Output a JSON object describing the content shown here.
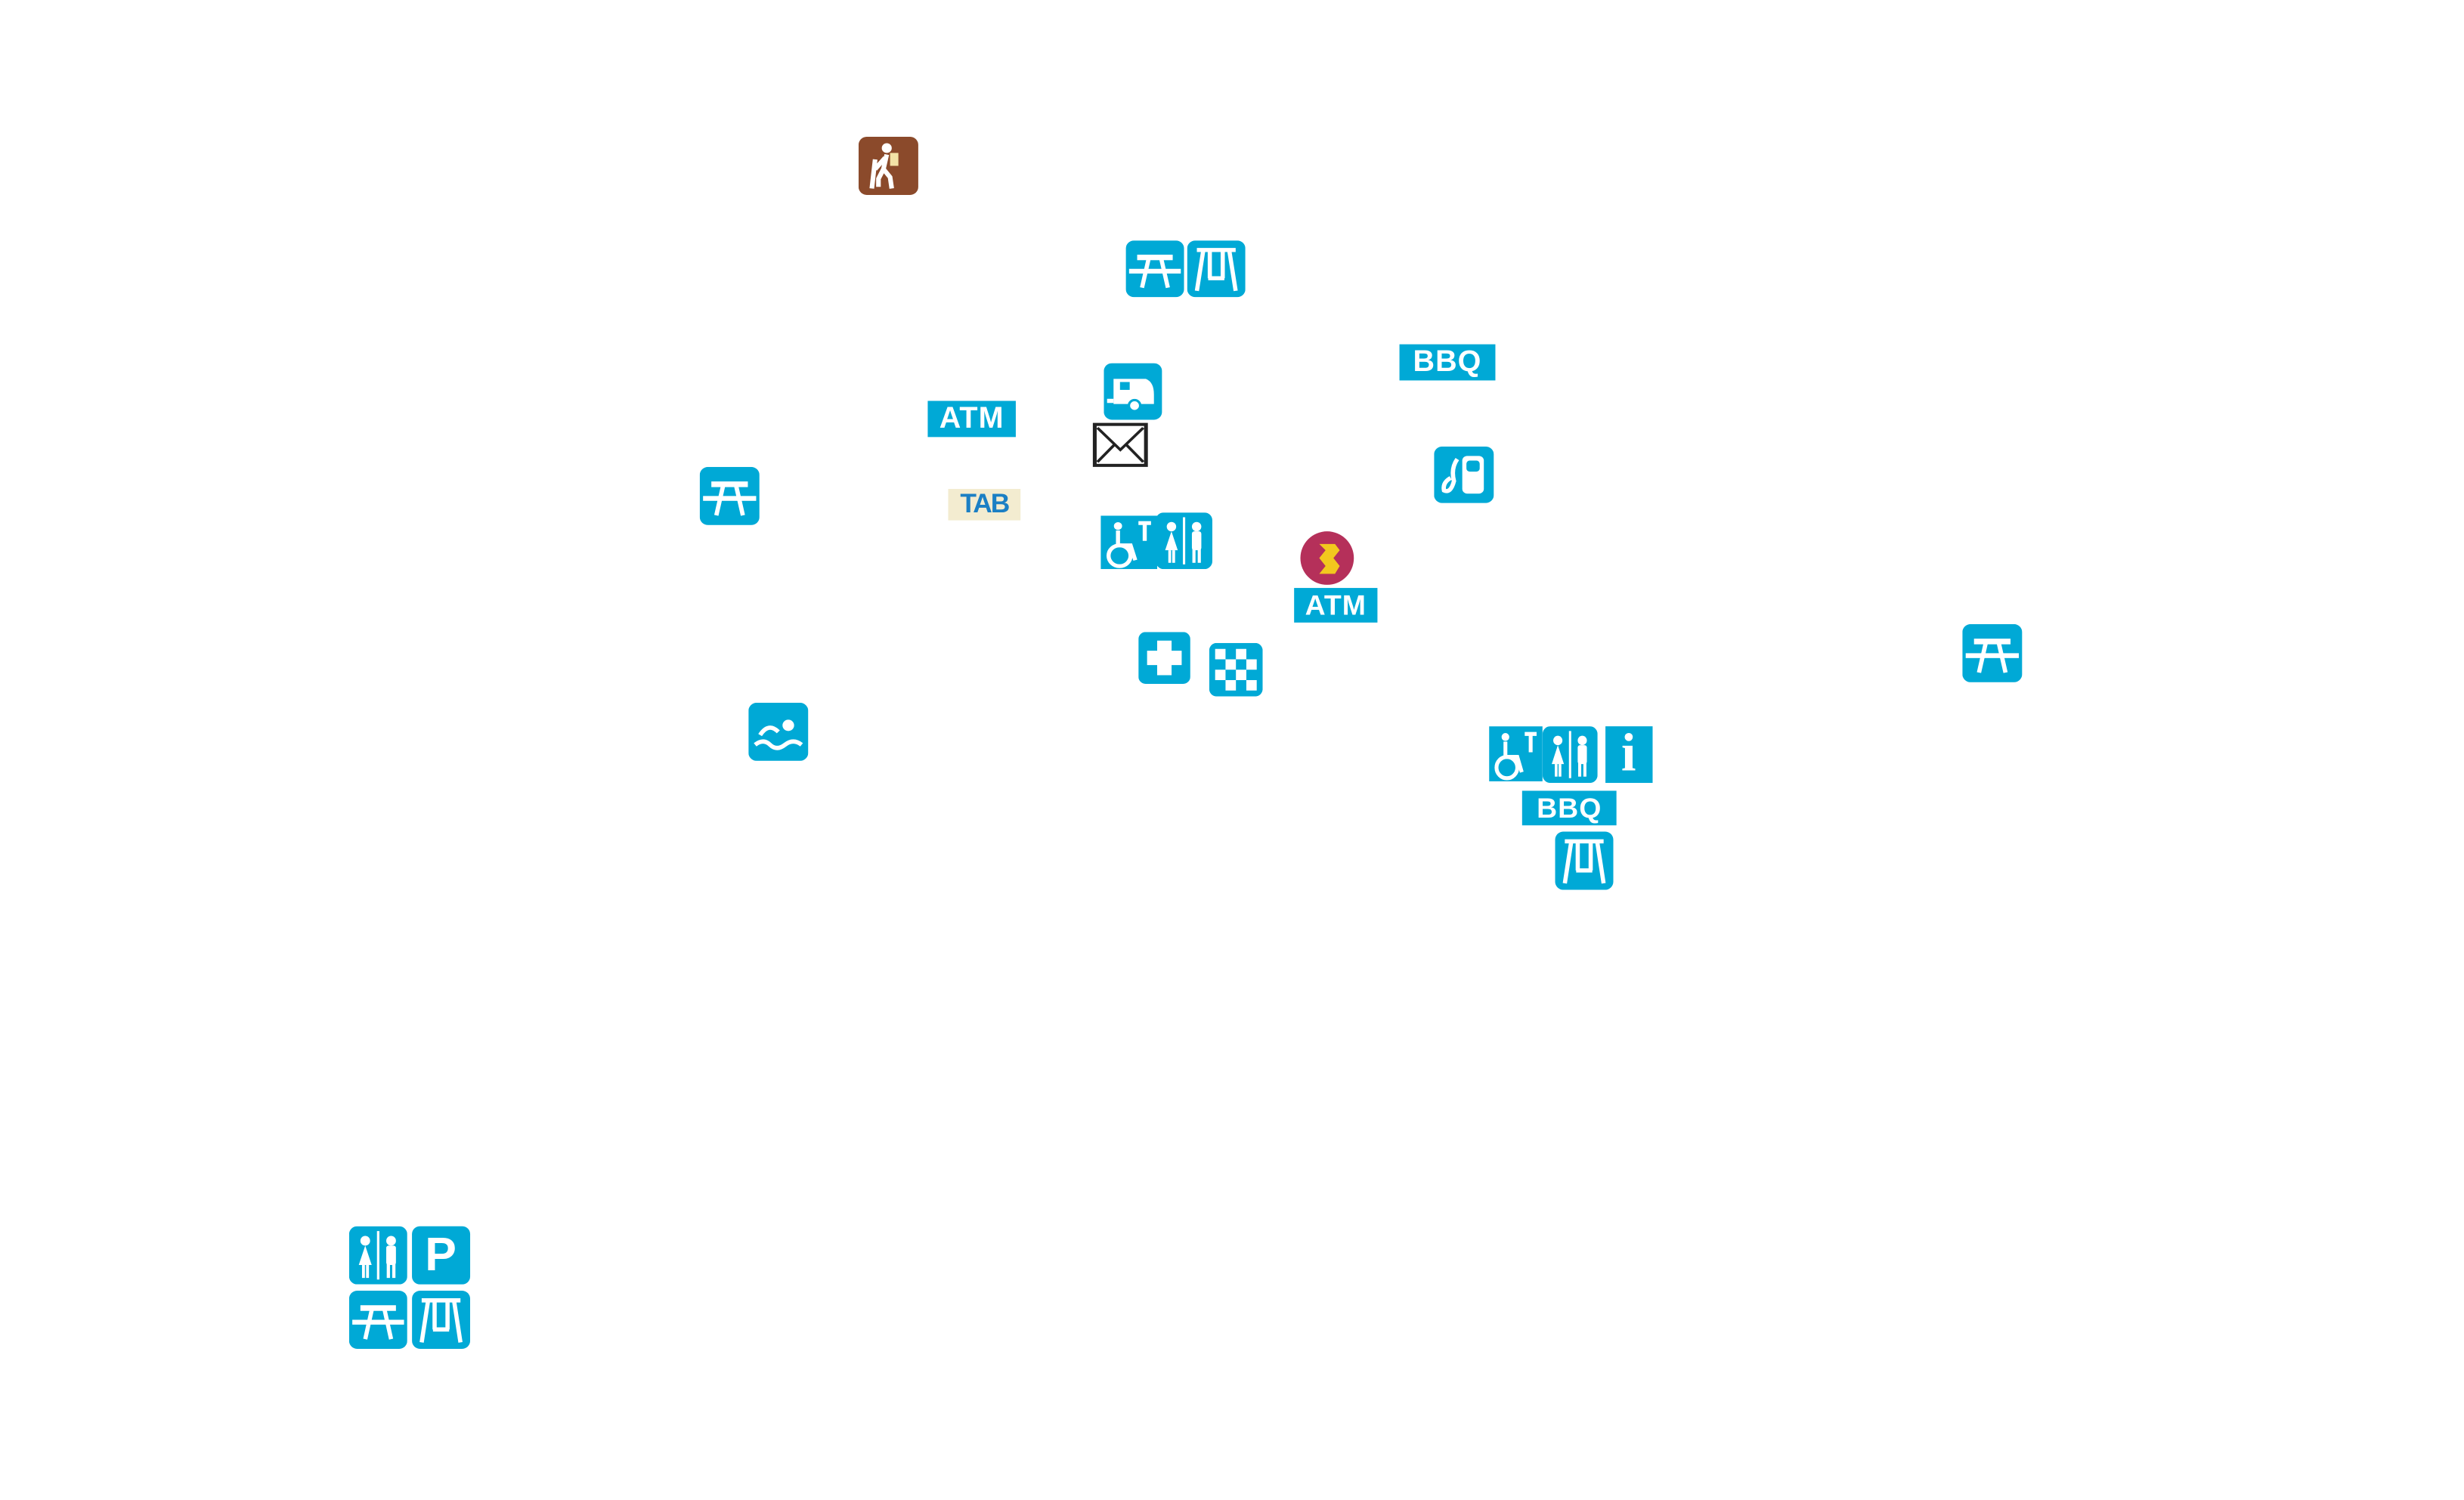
{
  "map": {
    "colors": {
      "facility_blue": "#00a9d6",
      "hiking_brown": "#8b4a2b",
      "bank_red": "#b5305a",
      "bank_yellow": "#f2c81e",
      "mail_black": "#222222"
    },
    "labels": {
      "atm": "ATM",
      "bbq": "BBQ",
      "tab": "TAB",
      "parking": "P",
      "info": "i"
    },
    "markers": [
      "hiking-icon",
      "picnic-table-icon",
      "playground-swing-icon",
      "bbq-sign",
      "caravan-park-icon",
      "atm-sign",
      "post-office-icon",
      "picnic-table-icon",
      "fuel-station-icon",
      "tab-logo",
      "accessible-toilet-icon",
      "toilets-icon",
      "bank-icon",
      "atm-sign",
      "first-aid-icon",
      "checkered-flag-icon",
      "picnic-table-icon",
      "swimming-icon",
      "accessible-toilet-icon",
      "toilets-icon",
      "information-icon",
      "bbq-sign",
      "playground-swing-icon",
      "toilets-icon",
      "parking-icon",
      "picnic-table-icon",
      "playground-swing-icon"
    ]
  }
}
